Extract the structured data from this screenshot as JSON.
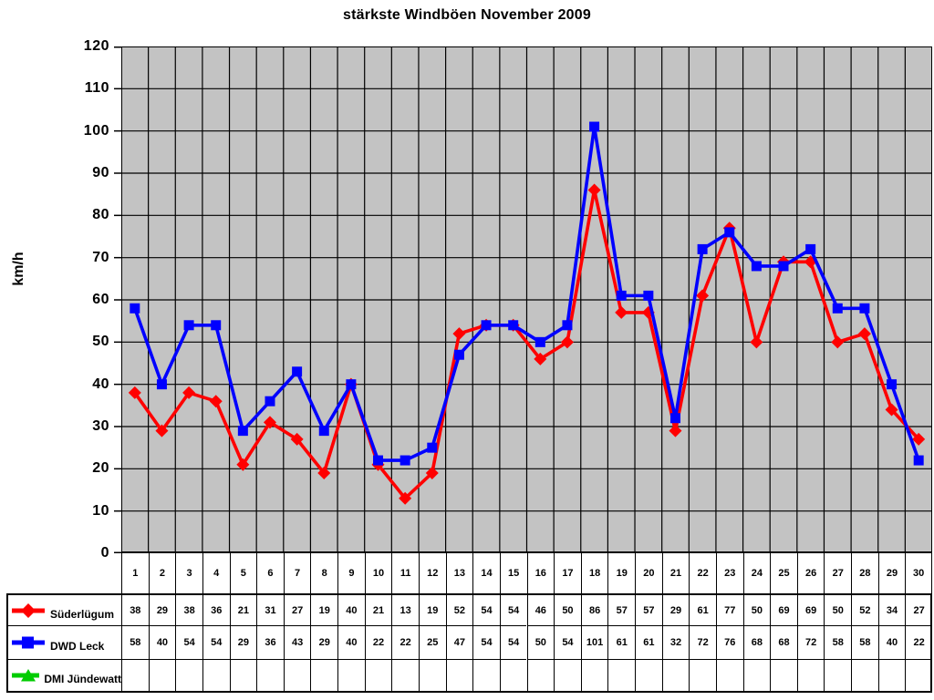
{
  "title": "stärkste Windböen November 2009",
  "y_axis": {
    "title": "km/h",
    "min": 0,
    "max": 120,
    "step": 10
  },
  "chart_data": {
    "type": "line",
    "title": "stärkste Windböen November 2009",
    "xlabel": "",
    "ylabel": "km/h",
    "ylim": [
      0,
      120
    ],
    "ytick_step": 10,
    "grid": true,
    "plot_bg": "#c3c3c3",
    "grid_color": "#000000",
    "legend_position": "table-left",
    "categories": [
      1,
      2,
      3,
      4,
      5,
      6,
      7,
      8,
      9,
      10,
      11,
      12,
      13,
      14,
      15,
      16,
      17,
      18,
      19,
      20,
      21,
      22,
      23,
      24,
      25,
      26,
      27,
      28,
      29,
      30
    ],
    "series": [
      {
        "name": "Süderlügum",
        "color": "#ff0000",
        "marker": "diamond",
        "values": [
          38,
          29,
          38,
          36,
          21,
          31,
          27,
          19,
          40,
          21,
          13,
          19,
          52,
          54,
          54,
          46,
          50,
          86,
          57,
          57,
          29,
          61,
          77,
          50,
          69,
          69,
          50,
          52,
          34,
          27
        ]
      },
      {
        "name": "DWD Leck",
        "color": "#0000ff",
        "marker": "square",
        "values": [
          58,
          40,
          54,
          54,
          29,
          36,
          43,
          29,
          40,
          22,
          22,
          25,
          47,
          54,
          54,
          50,
          54,
          101,
          61,
          61,
          32,
          72,
          76,
          68,
          68,
          72,
          58,
          58,
          40,
          22
        ]
      },
      {
        "name": "DMI Jündewatt",
        "color": "#00cc00",
        "marker": "triangle",
        "values": []
      }
    ]
  }
}
